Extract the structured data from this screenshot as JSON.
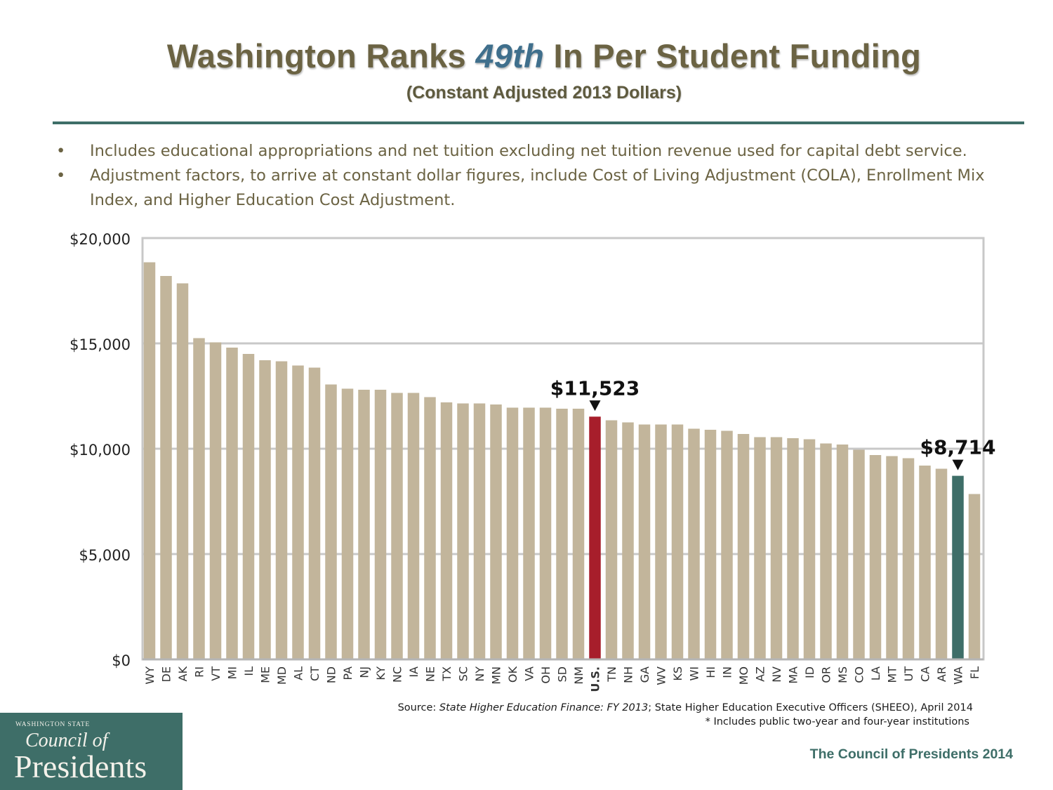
{
  "header": {
    "title_before": "Washington Ranks ",
    "title_rank": "49th",
    "title_after": " In Per Student Funding",
    "subtitle": "(Constant Adjusted 2013 Dollars)"
  },
  "bullets": [
    "Includes educational appropriations and net tuition excluding net tuition revenue used for capital debt service.",
    "Adjustment factors, to arrive at constant dollar figures, include Cost of Living Adjustment (COLA), Enrollment Mix Index, and Higher Education Cost Adjustment."
  ],
  "bullet_symbol": "•",
  "chart_data": {
    "type": "bar",
    "categories": [
      "WY",
      "DE",
      "AK",
      "RI",
      "VT",
      "MI",
      "IL",
      "ME",
      "MD",
      "AL",
      "CT",
      "ND",
      "PA",
      "NJ",
      "KY",
      "NC",
      "IA",
      "NE",
      "TX",
      "SC",
      "NY",
      "MN",
      "OK",
      "VA",
      "OH",
      "SD",
      "NM",
      "U.S.",
      "TN",
      "NH",
      "GA",
      "WV",
      "KS",
      "WI",
      "HI",
      "IN",
      "MO",
      "AZ",
      "NV",
      "MA",
      "ID",
      "OR",
      "MS",
      "CO",
      "LA",
      "MT",
      "UT",
      "CA",
      "AR",
      "WA",
      "FL"
    ],
    "values": [
      18850,
      18200,
      17850,
      15250,
      15050,
      14800,
      14500,
      14200,
      14150,
      13950,
      13850,
      13050,
      12850,
      12800,
      12800,
      12650,
      12650,
      12450,
      12200,
      12150,
      12150,
      12100,
      11950,
      11950,
      11950,
      11900,
      11900,
      11523,
      11350,
      11250,
      11150,
      11150,
      11150,
      10950,
      10900,
      10850,
      10700,
      10550,
      10550,
      10500,
      10450,
      10250,
      10200,
      9950,
      9700,
      9650,
      9550,
      9200,
      9050,
      8714,
      7850
    ],
    "ylim": [
      0,
      20000
    ],
    "yticks": [
      0,
      5000,
      10000,
      15000,
      20000
    ],
    "ytick_labels": [
      "$0",
      "$5,000",
      "$10,000",
      "$15,000",
      "$20,000"
    ],
    "grid": true,
    "colors": {
      "default": "#c2b59b",
      "highlight_us": "#a71e2b",
      "highlight_wa": "#3e6e68"
    },
    "annotations": [
      {
        "category": "U.S.",
        "label": "$11,523"
      },
      {
        "category": "WA",
        "label": "$8,714"
      }
    ]
  },
  "footer": {
    "source_prefix": "Source:  ",
    "source_title": "State Higher Education Finance: FY 2013",
    "source_rest": "; State Higher Education Executive Officers (SHEEO), April 2014",
    "note": "* Includes public two-year and four-year institutions",
    "credit": "The Council of Presidents 2014"
  },
  "logo": {
    "line1": "WASHINGTON STATE",
    "line2": "Council of",
    "line3": "Presidents"
  }
}
